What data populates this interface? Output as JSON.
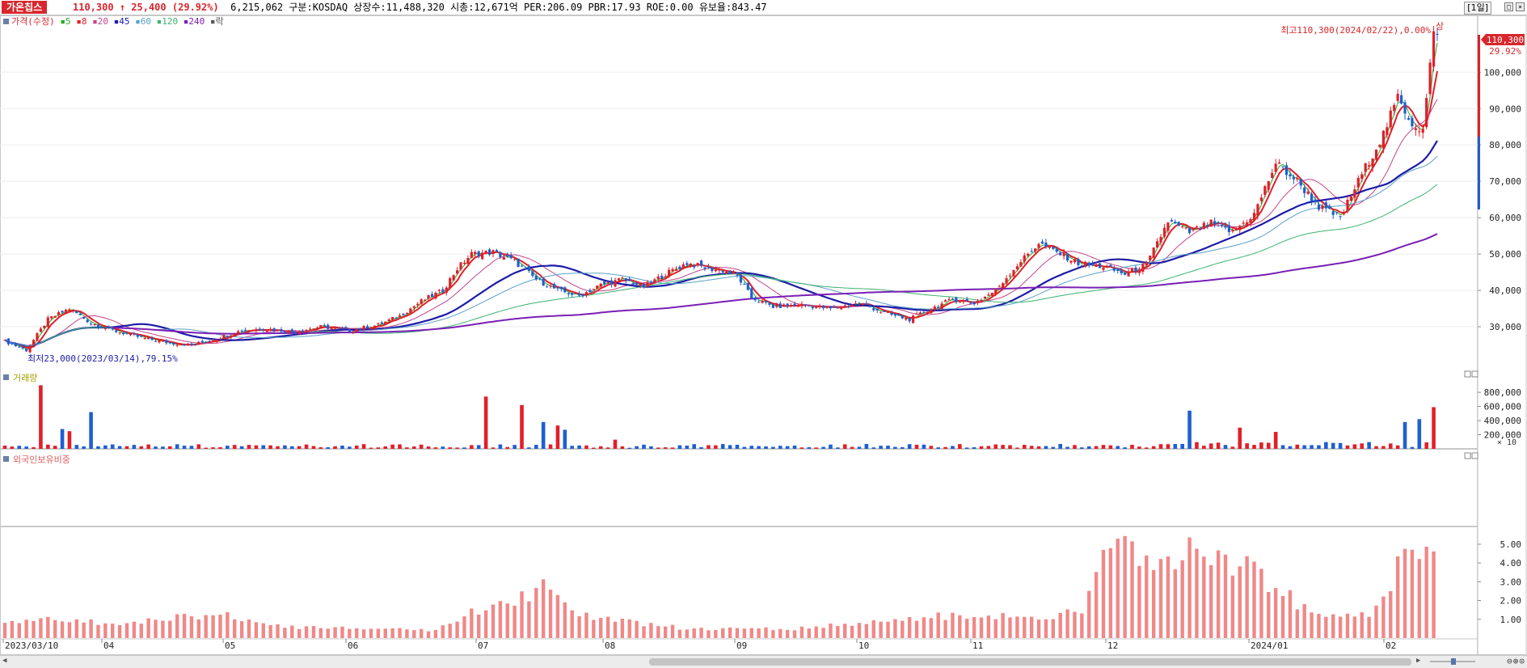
{
  "header": {
    "stock_name": "가온칩스",
    "price": "110,300",
    "change_arrow": "↑",
    "change": "25,400",
    "change_pct": "(29.92%)",
    "volume": "6,215,062",
    "market": "구분:KOSDAQ",
    "shares": "상장수:11,488,320",
    "market_cap": "시총:12,671억",
    "per": "PER:206.09",
    "pbr": "PBR:17.93",
    "roe": "ROE:0.00",
    "retention": "유보율:843.47",
    "period": "[1일]"
  },
  "colors": {
    "up": "#e0202a",
    "down": "#1f5fd0",
    "ma5": "#22aa22",
    "ma20": "#c2448a",
    "ma45": "#1c1ca8",
    "ma60": "#5aa0c8",
    "ma120": "#3cb371",
    "ma240": "#7a1fb5",
    "foreign": "#f08888"
  },
  "legend": {
    "price_label": "가격(수정)",
    "items": [
      {
        "label": "5",
        "color": "#22aa22"
      },
      {
        "label": "8",
        "color": "#e0202a"
      },
      {
        "label": "20",
        "color": "#c2448a"
      },
      {
        "label": "45",
        "color": "#1c1ca8"
      },
      {
        "label": "60",
        "color": "#5aa0c8"
      },
      {
        "label": "120",
        "color": "#3cb371"
      },
      {
        "label": "240",
        "color": "#7a1fb5"
      },
      {
        "label": "락",
        "color": "#555555"
      }
    ]
  },
  "annotations": {
    "high": "최고110,300(2024/02/22),0.00%",
    "high_mark": "상",
    "low": "최저23,000(2023/03/14),79.15%",
    "price_tag": "110,300",
    "pct_tag": "29.92%"
  },
  "volume_panel": {
    "title": "거래량",
    "unit": "× 10"
  },
  "foreign_panel": {
    "title": "외국인보유비중"
  },
  "chart_data": [
    {
      "type": "candlestick",
      "title": "",
      "x_labels": [
        "2023/03/10",
        "04",
        "05",
        "06",
        "07",
        "08",
        "09",
        "10",
        "11",
        "12",
        "2024/01",
        "02"
      ],
      "yticks": [
        "100,000",
        "90,000",
        "80,000",
        "70,000",
        "60,000",
        "50,000",
        "40,000",
        "30,000"
      ],
      "ylim": [
        20000,
        110300
      ],
      "close_keypoints": [
        [
          0,
          26000
        ],
        [
          6,
          23500
        ],
        [
          12,
          32000
        ],
        [
          18,
          35000
        ],
        [
          24,
          31000
        ],
        [
          30,
          29000
        ],
        [
          38,
          27000
        ],
        [
          46,
          25500
        ],
        [
          52,
          25000
        ],
        [
          58,
          26500
        ],
        [
          66,
          29000
        ],
        [
          72,
          29500
        ],
        [
          80,
          28500
        ],
        [
          88,
          30000
        ],
        [
          96,
          29000
        ],
        [
          104,
          30500
        ],
        [
          110,
          33000
        ],
        [
          116,
          37000
        ],
        [
          122,
          40000
        ],
        [
          126,
          46000
        ],
        [
          130,
          50000
        ],
        [
          136,
          50500
        ],
        [
          142,
          48000
        ],
        [
          148,
          43000
        ],
        [
          154,
          40000
        ],
        [
          160,
          38500
        ],
        [
          166,
          41500
        ],
        [
          172,
          43000
        ],
        [
          178,
          41000
        ],
        [
          184,
          44500
        ],
        [
          190,
          47500
        ],
        [
          196,
          46000
        ],
        [
          200,
          45500
        ],
        [
          204,
          44000
        ],
        [
          208,
          38000
        ],
        [
          214,
          35500
        ],
        [
          222,
          36000
        ],
        [
          230,
          35000
        ],
        [
          238,
          36500
        ],
        [
          246,
          33500
        ],
        [
          252,
          32000
        ],
        [
          258,
          35000
        ],
        [
          264,
          37500
        ],
        [
          270,
          36500
        ],
        [
          276,
          40000
        ],
        [
          282,
          47000
        ],
        [
          288,
          53000
        ],
        [
          294,
          50000
        ],
        [
          300,
          47000
        ],
        [
          306,
          46500
        ],
        [
          312,
          44500
        ],
        [
          318,
          47000
        ],
        [
          324,
          59000
        ],
        [
          330,
          56000
        ],
        [
          336,
          58500
        ],
        [
          342,
          56000
        ],
        [
          348,
          61000
        ],
        [
          354,
          75000
        ],
        [
          360,
          70000
        ],
        [
          366,
          63000
        ],
        [
          372,
          60000
        ],
        [
          378,
          72000
        ],
        [
          384,
          83000
        ],
        [
          388,
          93000
        ],
        [
          392,
          86000
        ],
        [
          395,
          84000
        ],
        [
          398,
          110300
        ]
      ],
      "ma_series": [
        {
          "name": "5",
          "smooth": 3
        },
        {
          "name": "8",
          "smooth": 5
        },
        {
          "name": "20",
          "smooth": 14
        },
        {
          "name": "45",
          "smooth": 30
        },
        {
          "name": "60",
          "smooth": 42
        },
        {
          "name": "120",
          "smooth": 80
        },
        {
          "name": "240",
          "smooth": 160
        }
      ]
    },
    {
      "type": "bar",
      "title": "거래량",
      "yticks": [
        "800,000",
        "600,000",
        "400,000",
        "200,000"
      ],
      "ylim": [
        0,
        950000
      ],
      "spikes": [
        [
          11,
          900000
        ],
        [
          16,
          280000
        ],
        [
          18,
          250000
        ],
        [
          24,
          520000
        ],
        [
          134,
          740000
        ],
        [
          145,
          620000
        ],
        [
          150,
          380000
        ],
        [
          154,
          330000
        ],
        [
          157,
          270000
        ],
        [
          170,
          130000
        ],
        [
          330,
          540000
        ],
        [
          345,
          300000
        ],
        [
          355,
          240000
        ],
        [
          390,
          380000
        ],
        [
          394,
          420000
        ],
        [
          398,
          590000
        ]
      ]
    },
    {
      "type": "bar",
      "title": "외국인보유비중",
      "yticks": [
        "5.00",
        "4.00",
        "3.00",
        "2.00",
        "1.00"
      ],
      "ylim": [
        0,
        5.6
      ],
      "keypoints": [
        [
          0,
          0.8
        ],
        [
          10,
          1.2
        ],
        [
          30,
          0.7
        ],
        [
          60,
          1.3
        ],
        [
          80,
          0.6
        ],
        [
          120,
          0.4
        ],
        [
          132,
          1.5
        ],
        [
          145,
          2.2
        ],
        [
          152,
          3.1
        ],
        [
          160,
          1.2
        ],
        [
          190,
          0.5
        ],
        [
          220,
          0.5
        ],
        [
          260,
          1.2
        ],
        [
          290,
          1.1
        ],
        [
          300,
          1.6
        ],
        [
          306,
          4.0
        ],
        [
          310,
          5.0
        ],
        [
          320,
          3.4
        ],
        [
          330,
          4.6
        ],
        [
          345,
          3.8
        ],
        [
          355,
          2.6
        ],
        [
          365,
          1.1
        ],
        [
          380,
          1.4
        ],
        [
          386,
          3.0
        ],
        [
          390,
          4.5
        ],
        [
          398,
          4.1
        ]
      ]
    }
  ]
}
